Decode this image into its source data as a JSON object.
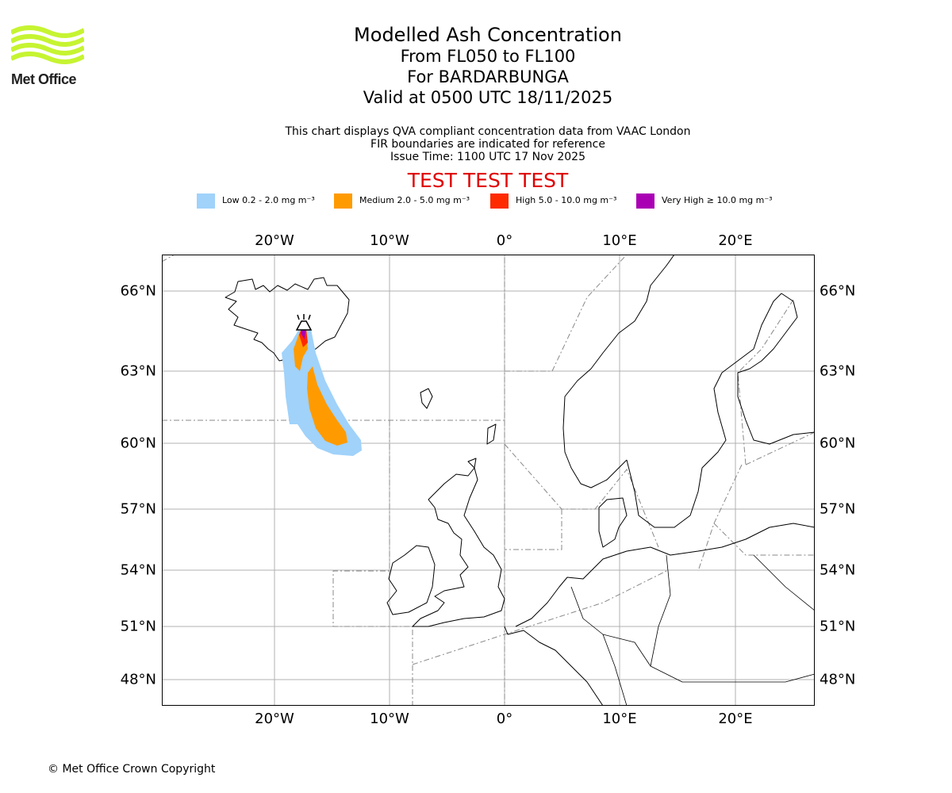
{
  "logo": {
    "text": "Met Office",
    "color": "#c6f431"
  },
  "title": {
    "main": "Modelled Ash Concentration",
    "levels": "From FL050 to FL100",
    "volcano": "For BARDARBUNGA",
    "valid": "Valid at 0500 UTC 18/11/2025"
  },
  "notes": {
    "line1": "This chart displays QVA compliant concentration data from VAAC London",
    "line2": "FIR boundaries are indicated for reference",
    "line3": "Issue Time: 1100 UTC 17 Nov 2025"
  },
  "test_banner": "TEST TEST TEST",
  "legend": [
    {
      "label": "Low 0.2 - 2.0 mg m⁻³",
      "color": "#a0d2fa"
    },
    {
      "label": "Medium 2.0 - 5.0 mg m⁻³",
      "color": "#ff9b00"
    },
    {
      "label": "High 5.0 - 10.0 mg m⁻³",
      "color": "#ff2a00"
    },
    {
      "label": "Very High ≥ 10.0 mg m⁻³",
      "color": "#aa00b4"
    }
  ],
  "axes": {
    "lon_labels": [
      "20°W",
      "10°W",
      "0°",
      "10°E",
      "20°E"
    ],
    "lat_labels": [
      "66°N",
      "63°N",
      "60°N",
      "57°N",
      "54°N",
      "51°N",
      "48°N"
    ]
  },
  "volcano_marker": {
    "name": "BARDARBUNGA",
    "icon": "volcano-icon"
  },
  "copyright": "© Met Office Crown Copyright"
}
